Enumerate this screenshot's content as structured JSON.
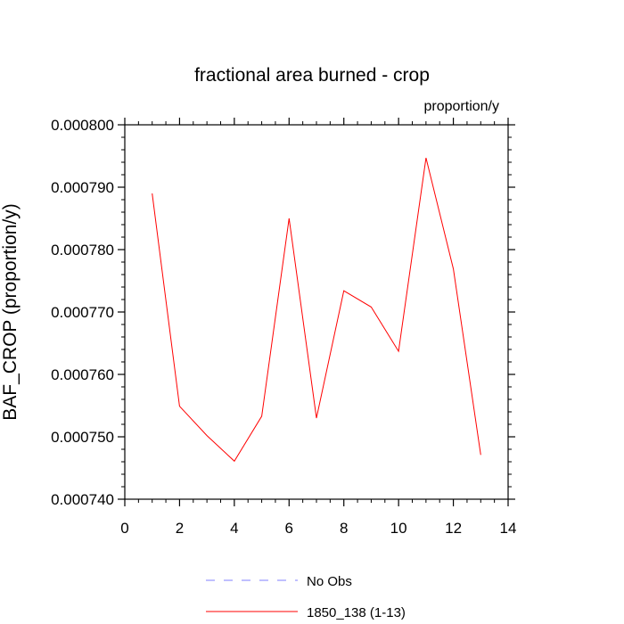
{
  "chart_data": {
    "type": "line",
    "title": "fractional area burned - crop",
    "units_label": "proportion/y",
    "ylabel": "BAF_CROP  (proportion/y)",
    "xlabel": "",
    "xlim": [
      0,
      14
    ],
    "ylim": [
      0.00074,
      0.0008
    ],
    "x_ticks": [
      0,
      2,
      4,
      6,
      8,
      10,
      12,
      14
    ],
    "x_tick_labels": [
      "0",
      "2",
      "4",
      "6",
      "8",
      "10",
      "12",
      "14"
    ],
    "y_ticks": [
      0.00074,
      0.00075,
      0.00076,
      0.00077,
      0.00078,
      0.00079,
      0.0008
    ],
    "y_tick_labels": [
      "0.000740",
      "0.000750",
      "0.000760",
      "0.000770",
      "0.000780",
      "0.000790",
      "0.000800"
    ],
    "grid": false,
    "legend_position": "bottom",
    "series": [
      {
        "name": "No Obs",
        "color": "#8080ff",
        "dashed": true,
        "x": [],
        "y": []
      },
      {
        "name": "1850_138 (1-13)",
        "color": "#ff0000",
        "dashed": false,
        "x": [
          1,
          2,
          3,
          4,
          5,
          6,
          7,
          8,
          9,
          10,
          11,
          12,
          13
        ],
        "y": [
          0.000789,
          0.0007549,
          0.0007502,
          0.0007461,
          0.0007533,
          0.000785,
          0.000753,
          0.0007734,
          0.0007708,
          0.0007637,
          0.0007947,
          0.0007769,
          0.0007471
        ]
      }
    ]
  }
}
